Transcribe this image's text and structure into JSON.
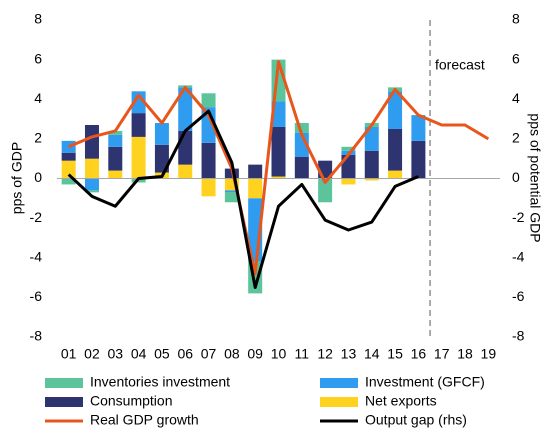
{
  "chart_data": {
    "type": "bar",
    "categories": [
      "01",
      "02",
      "03",
      "04",
      "05",
      "06",
      "07",
      "08",
      "09",
      "10",
      "11",
      "12",
      "13",
      "14",
      "15",
      "16",
      "17",
      "18",
      "19"
    ],
    "series": [
      {
        "name": "Inventories investment",
        "color": "#5cc49a",
        "values": [
          -0.3,
          -0.1,
          0.2,
          -0.2,
          0,
          0.1,
          0.7,
          -0.5,
          -1.6,
          2.1,
          0.5,
          -1.2,
          0.2,
          0.2,
          0.2,
          0,
          null,
          null,
          null
        ]
      },
      {
        "name": "Investment (GFCF)",
        "color": "#2f9cf0",
        "values": [
          0.6,
          -0.6,
          0.6,
          1.1,
          1.1,
          2.2,
          1.8,
          -0.1,
          -3.2,
          1.3,
          1.2,
          0,
          0.2,
          1.2,
          1.9,
          1.3,
          null,
          null,
          null
        ]
      },
      {
        "name": "Consumption",
        "color": "#2e3470",
        "values": [
          0.4,
          1.7,
          1.2,
          1.2,
          1.4,
          1.7,
          1.8,
          0.5,
          0.7,
          2.5,
          1.1,
          0.9,
          1.2,
          1.4,
          2.1,
          1.9,
          null,
          null,
          null
        ]
      },
      {
        "name": "Net exports",
        "color": "#ffd220",
        "values": [
          0.9,
          1.0,
          0.4,
          2.1,
          0.3,
          0.7,
          -0.9,
          -0.6,
          -1.0,
          0.1,
          0,
          0,
          -0.3,
          -0.1,
          0.4,
          0,
          null,
          null,
          null
        ]
      },
      {
        "name": "Real GDP growth",
        "type": "line",
        "color": "#e8561c",
        "values": [
          1.6,
          2.1,
          2.4,
          4.2,
          2.8,
          4.6,
          3.2,
          0.5,
          -4.8,
          5.9,
          2.2,
          -0.2,
          1.2,
          2.7,
          4.5,
          3.2,
          2.7,
          2.7,
          2.0
        ]
      },
      {
        "name": "Output gap (rhs)",
        "type": "line",
        "axis": "y2",
        "color": "#000000",
        "values": [
          0.2,
          -0.9,
          -1.4,
          0.0,
          0.1,
          2.4,
          3.4,
          0.8,
          -5.5,
          -1.4,
          -0.3,
          -2.1,
          -2.6,
          -2.2,
          -0.4,
          0.1,
          null,
          null,
          null
        ]
      }
    ],
    "ylabel": "pps of GDP",
    "y2label": "pps of potential GDP",
    "ylim": [
      -8,
      8
    ],
    "yticks": [
      -8,
      -6,
      -4,
      -2,
      0,
      2,
      4,
      6,
      8
    ],
    "y2lim": [
      -8,
      8
    ],
    "y2ticks": [
      -8,
      -6,
      -4,
      -2,
      0,
      2,
      4,
      6,
      8
    ],
    "annotation": "forecast",
    "grid": false
  }
}
